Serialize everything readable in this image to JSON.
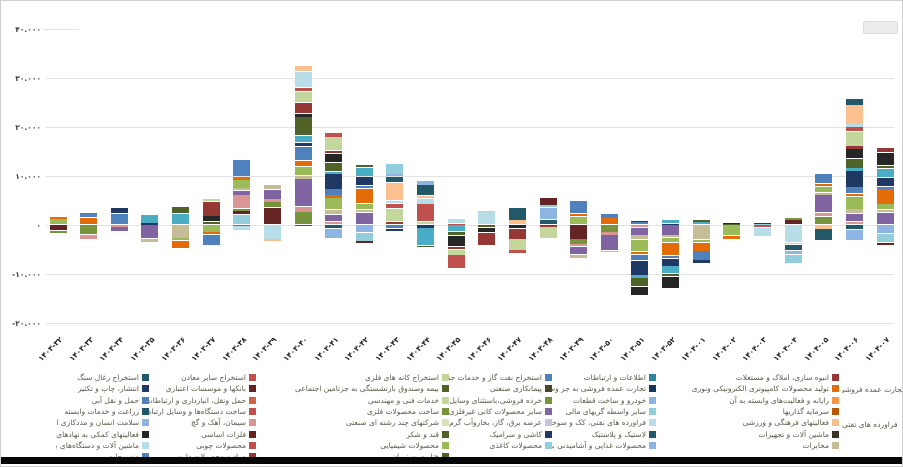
{
  "chart_data": {
    "type": "bar",
    "stacked": true,
    "rtl": true,
    "title": "",
    "xlabel": "",
    "ylabel": "",
    "ylim": [
      -20000,
      40000
    ],
    "grid": true,
    "legend_position": "bottom",
    "y_axis_ticks": [
      {
        "value": 40000,
        "label": "۴۰.۰۰۰",
        "short_line": true
      },
      {
        "value": 30000,
        "label": "۳۰.۰۰۰"
      },
      {
        "value": 20000,
        "label": "۲۰.۰۰۰"
      },
      {
        "value": 10000,
        "label": "۱۰.۰۰۰"
      },
      {
        "value": 0,
        "label": "۰"
      },
      {
        "value": -10000,
        "label": "-۱۰.۰۰۰"
      },
      {
        "value": -20000,
        "label": "-۲۰.۰۰۰"
      }
    ],
    "bars": [
      {
        "label": "۱۴۰۳-۳۲",
        "pos": 1600,
        "neg": 1600,
        "o": 0
      },
      {
        "label": "۱۴۰۳-۳۳",
        "pos": 2400,
        "neg": 2900,
        "o": 3
      },
      {
        "label": "۱۴۰۳-۳۴",
        "pos": 3500,
        "neg": 1400,
        "o": 6
      },
      {
        "label": "۱۴۰۳-۳۵",
        "pos": 2100,
        "neg": 3600,
        "o": 9
      },
      {
        "label": "۱۴۰۳-۳۶",
        "pos": 3700,
        "neg": 4900,
        "o": 12
      },
      {
        "label": "۱۴۰۳-۳۷",
        "pos": 5300,
        "neg": 4300,
        "o": 15
      },
      {
        "label": "۱۴۰۳-۳۸",
        "pos": 13300,
        "neg": 1200,
        "o": 2
      },
      {
        "label": "۱۴۰۳-۳۹",
        "pos": 8100,
        "neg": 3300,
        "o": 5
      },
      {
        "label": "۱۴۰۳-۴۰",
        "pos": 32400,
        "neg": 300,
        "o": 8
      },
      {
        "label": "۱۴۰۳-۴۱",
        "pos": 18800,
        "neg": 2700,
        "o": 11
      },
      {
        "label": "۱۴۰۳-۴۲",
        "pos": 12300,
        "neg": 3900,
        "o": 14
      },
      {
        "label": "۱۴۰۳-۴۳",
        "pos": 12500,
        "neg": 1200,
        "o": 1
      },
      {
        "label": "۱۴۰۳-۴۴",
        "pos": 9000,
        "neg": 4700,
        "o": 4
      },
      {
        "label": "۱۴۰۳-۴۵",
        "pos": 1300,
        "neg": 9000,
        "o": 7
      },
      {
        "label": "۱۴۰۳-۴۶",
        "pos": 2900,
        "neg": 4300,
        "o": 10
      },
      {
        "label": "۱۴۰۳-۴۷",
        "pos": 3500,
        "neg": 5900,
        "o": 13
      },
      {
        "label": "۱۴۰۳-۴۸",
        "pos": 5500,
        "neg": 2700,
        "o": 16
      },
      {
        "label": "۱۴۰۳-۴۹",
        "pos": 4900,
        "neg": 6900,
        "o": 0
      },
      {
        "label": "۱۴۰۳-۵۰",
        "pos": 2300,
        "neg": 5700,
        "o": 3
      },
      {
        "label": "۱۴۰۳-۵۱",
        "pos": 900,
        "neg": 14500,
        "o": 6
      },
      {
        "label": "۱۴۰۳-۵۲",
        "pos": 1000,
        "neg": 12900,
        "o": 9
      },
      {
        "label": "۱۴۰۴-۰۱",
        "pos": 1000,
        "neg": 7800,
        "o": 12
      },
      {
        "label": "۱۴۰۴-۰۲",
        "pos": 400,
        "neg": 2900,
        "o": 15
      },
      {
        "label": "۱۴۰۴-۰۳",
        "pos": 500,
        "neg": 2300,
        "o": 2
      },
      {
        "label": "۱۴۰۴-۰۴",
        "pos": 1400,
        "neg": 8000,
        "o": 5
      },
      {
        "label": "۱۴۰۴-۰۵",
        "pos": 10400,
        "neg": 3300,
        "o": 8
      },
      {
        "label": "۱۴۰۴-۰۶",
        "pos": 25700,
        "neg": 3300,
        "o": 11
      },
      {
        "label": "۱۴۰۴-۰۷",
        "pos": 15700,
        "neg": 4300,
        "o": 14
      }
    ],
    "palette": [
      "#9bbb59",
      "#953735",
      "#92cddc",
      "#e36c09",
      "#c3d69b",
      "#632423",
      "#4f81bd",
      "#c0504d",
      "#77933c",
      "#1f3864",
      "#b7dee8",
      "#d99694",
      "#4bacc6",
      "#fac08f",
      "#8064a2",
      "#4f6228",
      "#215968",
      "#c4bd97",
      "#262626",
      "#8db4e2"
    ],
    "seg_weights": [
      6,
      2,
      9,
      3,
      2,
      12,
      4,
      2,
      7,
      3,
      15,
      2,
      5,
      3,
      8,
      2,
      4,
      10,
      2,
      6
    ],
    "grid_color": "#e2e2e2"
  },
  "legend": {
    "rows": [
      [
        {
          "label": "استخراج زغال سنگ",
          "color": "#215968"
        },
        {
          "label": "استخراج سایر معادن",
          "color": "#c0504d"
        },
        {
          "label": "استخراج کانه های فلزی",
          "color": "#c3d69b"
        },
        {
          "label": "استخراج نفت گاز و خدمات جنبی جز اکتشاف",
          "color": "#4f81bd"
        },
        {
          "label": "اطلاعات و ارتباطات",
          "color": "#31859c"
        },
        {
          "label": "انبوه سازی، املاک و مستغلات",
          "color": "#953735"
        }
      ],
      [
        {
          "label": "انتشار، چاپ و تکثیر",
          "color": "#1f3864"
        },
        {
          "label": "بانکها و موسسات اعتباری",
          "color": "#632423"
        },
        {
          "label": "بیمه وصندوق بازنشستگی به جزتامین اجتماعی",
          "color": "#4f6228"
        },
        {
          "label": "پیمانکاری صنعتی",
          "color": "#494529"
        },
        {
          "label": "تجارت عمده فروشی به جز وسایل نقلیه موتور",
          "color": "#17375e"
        },
        {
          "label": "تولید محصولات کامپیوتری الکترونیکی ونوری",
          "color": "#e36c09"
        }
      ],
      [
        {
          "label": "حمل و نقل آبی",
          "color": "#4f81bd"
        },
        {
          "label": "حمل ونقل، انبارداری و ارتباطات",
          "color": "#d16349"
        },
        {
          "label": "خدمات فنی و مهندسی",
          "color": "#c3d69b"
        },
        {
          "label": "خرده فروشی،باستثنای وسایل نقلیه موتوری",
          "color": "#77933c"
        },
        {
          "label": "خودرو و ساخت قطعات",
          "color": "#8eb4e3"
        },
        {
          "label": "رایانه و فعالیت‌های وابسته به آن",
          "color": "#f79646"
        }
      ],
      [
        {
          "label": "زراعت و خدمات وابسته",
          "color": "#215968"
        },
        {
          "label": "ساخت دستگاه‌ها و وسایل ارتباطی",
          "color": "#c0504d"
        },
        {
          "label": "ساخت محصولات فلزی",
          "color": "#77933c"
        },
        {
          "label": "سایر محصولات کانی غیرفلزی",
          "color": "#8064a2"
        },
        {
          "label": "سایر واسطه گریهای مالی",
          "color": "#92cddc"
        },
        {
          "label": "سرمایه گذاریها",
          "color": "#b65708"
        }
      ],
      [
        {
          "label": "سلامت انسان و مددکاری اجتماعی",
          "color": "#8db4e2"
        },
        {
          "label": "سیمان، آهک و گچ",
          "color": "#d99694"
        },
        {
          "label": "شرکتهای چند رشته ای صنعتی",
          "color": "#d7e4bd"
        },
        {
          "label": "عرضه برق، گاز، بخاروآب گرم",
          "color": "#ccc0da"
        },
        {
          "label": "فراورده های نفتی، کک و سوخت هسته ای",
          "color": "#b7dee8"
        },
        {
          "label": "فعالیتهای فرهنگی و ورزشی",
          "color": "#fac08f"
        }
      ],
      [
        {
          "label": "فعالیتهای کمکی به نهادهای مالی واسط",
          "color": "#262626"
        },
        {
          "label": "فلزات اساسی",
          "color": "#632423"
        },
        {
          "label": "قند و شکر",
          "color": "#4f6228"
        },
        {
          "label": "کاشی و سرامیک",
          "color": "#1f3864"
        },
        {
          "label": "لاستیک و پلاستیک",
          "color": "#215968"
        },
        {
          "label": "ماشین آلات و تجهیزات",
          "color": "#3b3226"
        }
      ],
      [
        {
          "label": "ماشین آلات و دستگاه‌های برقی",
          "color": "#b7dee8"
        },
        {
          "label": "محصولات چوبی",
          "color": "#c0504d"
        },
        {
          "label": "محصولات شیمیایی",
          "color": "#9bbb59"
        },
        {
          "label": "محصولات کاغذی",
          "color": "#92cddc"
        },
        {
          "label": "محصولات غذایی و آشامیدنی به جز قند و شکر",
          "color": "#8db4e2"
        },
        {
          "label": "مخابرات",
          "color": "#c4bd97"
        }
      ],
      [
        {
          "label": "منسوجات",
          "color": "#4f81bd"
        },
        {
          "label": "مواد و محصولات دارویی",
          "color": "#953735"
        },
        {
          "label": "هتل و رستوران",
          "color": "#4f6228"
        },
        null,
        null,
        null
      ]
    ],
    "fragments": [
      {
        "label": "تجارت عمده فروشی"
      },
      {
        "label": "فراورده های نفتی"
      }
    ]
  }
}
